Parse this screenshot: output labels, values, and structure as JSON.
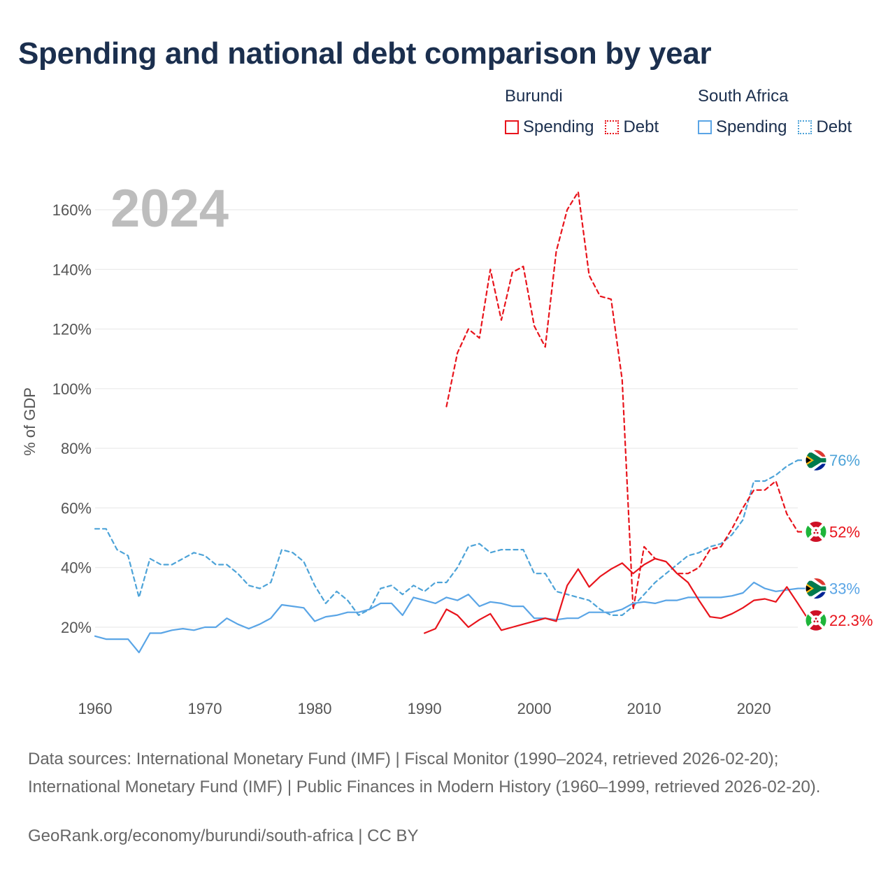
{
  "header": {
    "title": "Spending and national debt comparison by year"
  },
  "legend": {
    "groups": [
      {
        "name": "Burundi",
        "color": "#e8141c",
        "spending_label": "Spending",
        "debt_label": "Debt"
      },
      {
        "name": "South Africa",
        "color": "#5aa5e6",
        "debt_color": "#4da3d8",
        "spending_label": "Spending",
        "debt_label": "Debt"
      }
    ]
  },
  "chart_data": {
    "type": "line",
    "title": "Spending and national debt comparison by year",
    "year_label": "2024",
    "ylabel": "% of GDP",
    "xlim": [
      1960,
      2024
    ],
    "ylim": [
      0,
      170
    ],
    "x_ticks": [
      1960,
      1970,
      1980,
      1990,
      2000,
      2010,
      2020
    ],
    "y_ticks": [
      {
        "value": 20,
        "label": "20%"
      },
      {
        "value": 40,
        "label": "40%"
      },
      {
        "value": 60,
        "label": "60%"
      },
      {
        "value": 80,
        "label": "80%"
      },
      {
        "value": 100,
        "label": "100%"
      },
      {
        "value": 120,
        "label": "120%"
      },
      {
        "value": 140,
        "label": "140%"
      },
      {
        "value": 160,
        "label": "160%"
      }
    ],
    "grid": true,
    "series": [
      {
        "name": "South Africa Debt",
        "style": "dashed",
        "color": "#4da3d8",
        "end_label": "76%",
        "flag": "south-africa",
        "start_year": 1960,
        "values": [
          53,
          53,
          46,
          44,
          30,
          43,
          41,
          41,
          43,
          45,
          44,
          41,
          41,
          38,
          34,
          33,
          35,
          46,
          45,
          42,
          34,
          28,
          32,
          29,
          24,
          26,
          33,
          34,
          31,
          34,
          32,
          35,
          35,
          40,
          47,
          48,
          45,
          46,
          46,
          46,
          38,
          38,
          32,
          31,
          30,
          29,
          26,
          24,
          24,
          27,
          31,
          35,
          38,
          41,
          44,
          45,
          47,
          48,
          51,
          56,
          69,
          69,
          71,
          74,
          76
        ]
      },
      {
        "name": "Burundi Debt",
        "style": "dashed",
        "color": "#e8141c",
        "end_label": "52%",
        "flag": "burundi",
        "start_year": 1992,
        "values": [
          94,
          112,
          120,
          117,
          140,
          123,
          139,
          141,
          121,
          114,
          146,
          160,
          166,
          138,
          131,
          130,
          103,
          26,
          47,
          43,
          42,
          38,
          38,
          40,
          46,
          47,
          53,
          60,
          66,
          66,
          69,
          58,
          52
        ]
      },
      {
        "name": "South Africa Spending",
        "style": "solid",
        "color": "#5aa5e6",
        "end_label": "33%",
        "flag": "south-africa",
        "start_year": 1960,
        "values": [
          17,
          16,
          16,
          16,
          11.5,
          18,
          18,
          19,
          19.5,
          19,
          20,
          20,
          23,
          21,
          19.5,
          21,
          23,
          27.5,
          27,
          26.5,
          22,
          23.5,
          24,
          25,
          25,
          26,
          28,
          28,
          24,
          30,
          29,
          28,
          30,
          29,
          31,
          27,
          28.5,
          28,
          27,
          27,
          23,
          23,
          22.5,
          23,
          23,
          25,
          25,
          25,
          26,
          28,
          28.5,
          28,
          29,
          29,
          30,
          30,
          30,
          30,
          30.5,
          31.5,
          35,
          33,
          32,
          32.5,
          33
        ]
      },
      {
        "name": "Burundi Spending",
        "style": "solid",
        "color": "#e8141c",
        "end_label": "22.3%",
        "flag": "burundi",
        "start_year": 1990,
        "values": [
          18,
          19.5,
          26,
          24,
          20,
          22.5,
          24.5,
          19,
          20,
          21,
          22,
          23,
          22,
          34,
          39.5,
          33.5,
          37,
          39.5,
          41.5,
          38,
          41,
          43,
          42,
          38,
          35,
          29,
          23.5,
          23,
          24.5,
          26.5,
          29,
          29.5,
          28.5,
          33.5,
          28,
          22.3
        ]
      }
    ]
  },
  "footer": {
    "sources": "Data sources: International Monetary Fund (IMF) | Fiscal Monitor (1990–2024, retrieved 2026-02-20); International Monetary Fund (IMF) | Public Finances in Modern History (1960–1999, retrieved 2026-02-20).",
    "attribution": "GeoRank.org/economy/burundi/south-africa | CC BY"
  }
}
